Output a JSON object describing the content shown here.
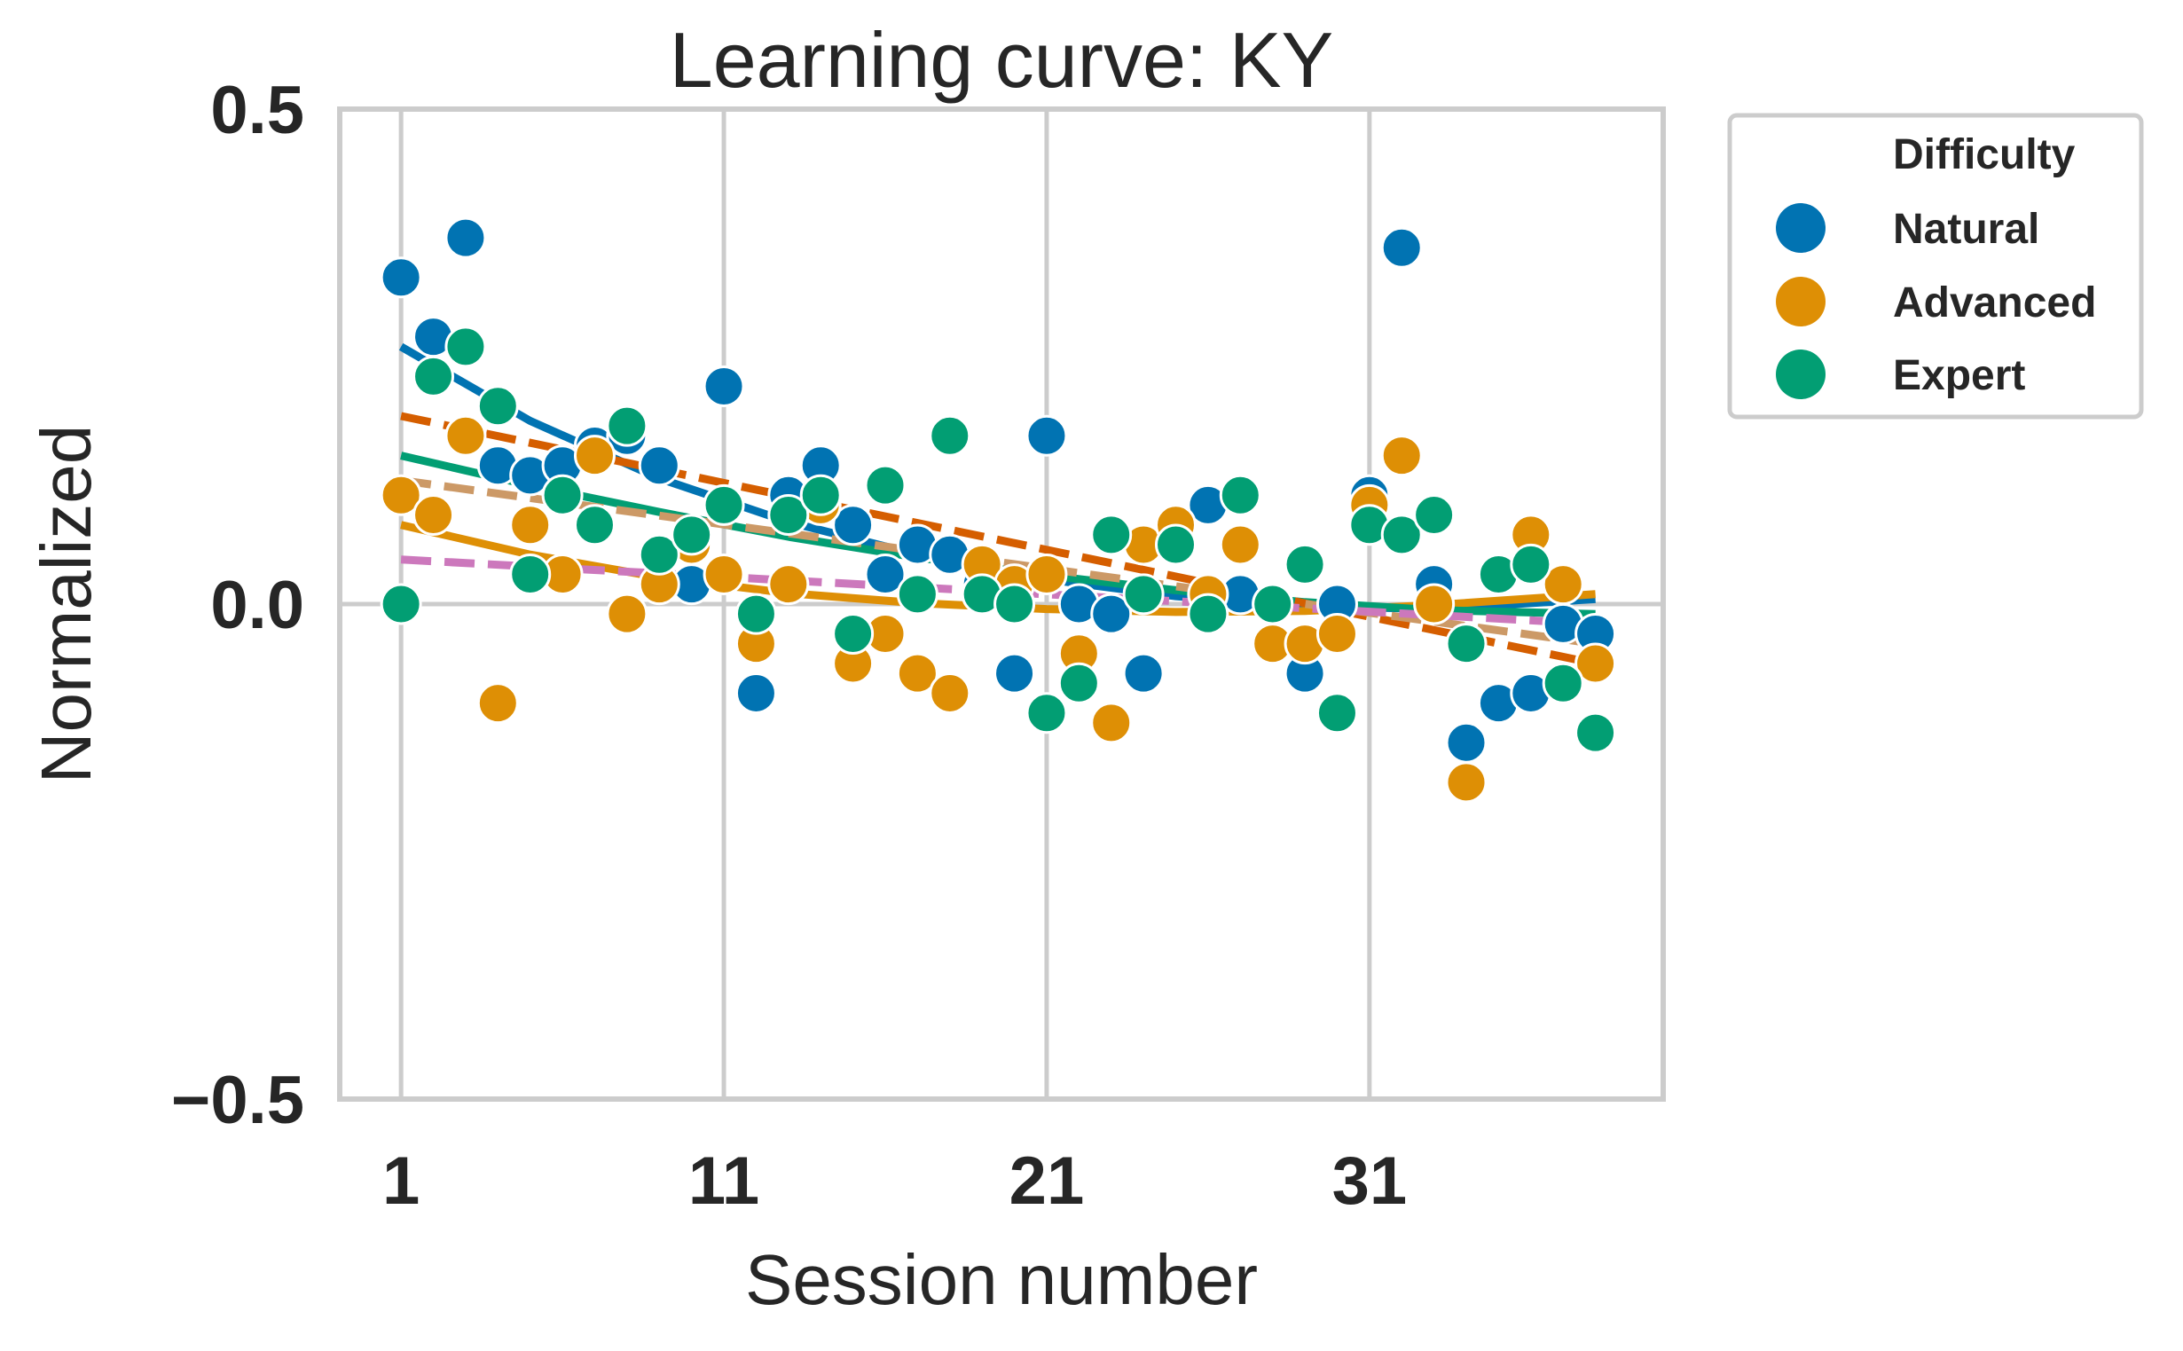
{
  "chart_data": {
    "type": "scatter",
    "title": "Learning curve: KY",
    "xlabel": "Session number",
    "ylabel": "Normalized",
    "xlim": [
      -0.9,
      40.1
    ],
    "ylim": [
      -0.5,
      0.5
    ],
    "xticks": [
      1,
      11,
      21,
      31
    ],
    "yticks": [
      -0.5,
      0.0,
      0.5
    ],
    "ytick_labels": [
      "−0.5",
      "0.0",
      "0.5"
    ],
    "grid": true,
    "legend": {
      "title": "Difficulty",
      "placement": "outside-right-top",
      "entries": [
        "Natural",
        "Advanced",
        "Expert"
      ]
    },
    "colors": {
      "Natural": "#0173b2",
      "Advanced": "#de8f05",
      "Expert": "#029e73",
      "dashed_red": "#d55e00",
      "dashed_tan": "#cc9966",
      "dashed_pink": "#cc78bc",
      "grid": "#cccccc",
      "frame": "#cccccc"
    },
    "series": [
      {
        "name": "Natural",
        "x": [
          1,
          2,
          3,
          4,
          5,
          6,
          7,
          8,
          9,
          10,
          11,
          12,
          13,
          14,
          15,
          16,
          17,
          18,
          19,
          20,
          21,
          22,
          23,
          24,
          25,
          26,
          27,
          28,
          29,
          30,
          31,
          32,
          33,
          34,
          35,
          36,
          37,
          38
        ],
        "y": [
          0.33,
          0.27,
          0.37,
          0.14,
          0.13,
          0.14,
          0.16,
          0.17,
          0.14,
          0.02,
          0.22,
          -0.09,
          0.11,
          0.14,
          0.08,
          0.03,
          0.06,
          0.05,
          0.02,
          -0.07,
          0.17,
          0.0,
          -0.01,
          -0.07,
          0.06,
          0.1,
          0.01,
          0.0,
          -0.07,
          0.0,
          0.11,
          0.36,
          0.02,
          -0.14,
          -0.1,
          -0.09,
          -0.02,
          -0.03
        ]
      },
      {
        "name": "Advanced",
        "x": [
          1,
          2,
          3,
          4,
          5,
          6,
          7,
          8,
          9,
          10,
          11,
          12,
          13,
          14,
          15,
          16,
          17,
          18,
          19,
          20,
          21,
          22,
          23,
          24,
          25,
          26,
          27,
          28,
          29,
          30,
          31,
          32,
          33,
          34,
          35,
          36,
          37,
          38
        ],
        "y": [
          0.11,
          0.09,
          0.17,
          -0.1,
          0.08,
          0.03,
          0.15,
          -0.01,
          0.02,
          0.06,
          0.03,
          -0.04,
          0.02,
          0.1,
          -0.06,
          -0.03,
          -0.07,
          -0.09,
          0.04,
          0.02,
          0.03,
          -0.05,
          -0.12,
          0.06,
          0.08,
          0.01,
          0.06,
          -0.04,
          -0.04,
          -0.03,
          0.1,
          0.15,
          0.0,
          -0.18,
          0.03,
          0.07,
          0.02,
          -0.06
        ]
      },
      {
        "name": "Expert",
        "x": [
          1,
          2,
          3,
          4,
          5,
          6,
          7,
          8,
          9,
          10,
          11,
          12,
          13,
          14,
          15,
          16,
          17,
          18,
          19,
          20,
          21,
          22,
          23,
          24,
          25,
          26,
          27,
          28,
          29,
          30,
          31,
          32,
          33,
          34,
          35,
          36,
          37,
          38
        ],
        "y": [
          0.0,
          0.23,
          0.26,
          0.2,
          0.03,
          0.11,
          0.08,
          0.18,
          0.05,
          0.07,
          0.1,
          -0.01,
          0.09,
          0.11,
          -0.03,
          0.12,
          0.01,
          0.17,
          0.01,
          0.0,
          -0.11,
          -0.08,
          0.07,
          0.01,
          0.06,
          -0.01,
          0.11,
          0.0,
          0.04,
          -0.11,
          0.08,
          0.07,
          0.09,
          -0.04,
          0.03,
          0.04,
          -0.08,
          -0.13
        ]
      }
    ],
    "fit_lines": [
      {
        "series": "Natural",
        "style": "solid",
        "color": "#0173b2",
        "x": [
          1,
          5,
          9,
          13,
          17,
          21,
          25,
          29,
          33,
          38
        ],
        "y": [
          0.26,
          0.185,
          0.127,
          0.083,
          0.05,
          0.025,
          0.008,
          -0.002,
          -0.005,
          0.005
        ]
      },
      {
        "series": "Advanced",
        "style": "solid",
        "color": "#de8f05",
        "x": [
          1,
          5,
          9,
          13,
          17,
          21,
          25,
          29,
          33,
          38
        ],
        "y": [
          0.08,
          0.05,
          0.027,
          0.011,
          0.001,
          -0.005,
          -0.008,
          -0.007,
          -0.001,
          0.01
        ]
      },
      {
        "series": "Expert",
        "style": "solid",
        "color": "#029e73",
        "x": [
          1,
          5,
          9,
          13,
          17,
          21,
          25,
          29,
          33,
          38
        ],
        "y": [
          0.15,
          0.12,
          0.093,
          0.068,
          0.047,
          0.029,
          0.014,
          0.002,
          -0.006,
          -0.01
        ]
      },
      {
        "series": "",
        "style": "dashed",
        "color": "#d55e00",
        "x": [
          1,
          38
        ],
        "y": [
          0.19,
          -0.06
        ]
      },
      {
        "series": "",
        "style": "dashed",
        "color": "#cc9966",
        "x": [
          1,
          38
        ],
        "y": [
          0.125,
          -0.04
        ]
      },
      {
        "series": "",
        "style": "dashed",
        "color": "#cc78bc",
        "x": [
          1,
          38
        ],
        "y": [
          0.045,
          -0.02
        ]
      }
    ]
  }
}
